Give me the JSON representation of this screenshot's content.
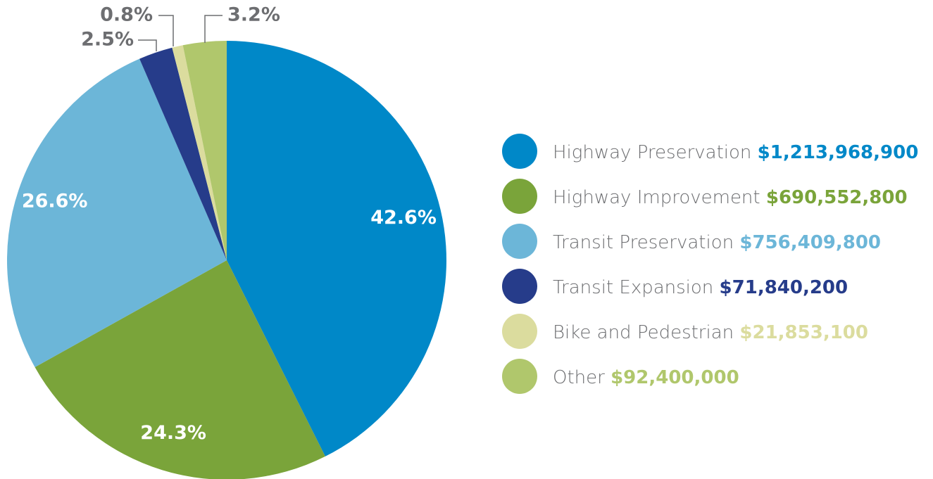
{
  "chart_data": {
    "type": "pie",
    "categories": [
      "Highway Preservation",
      "Highway Improvement",
      "Transit Preservation",
      "Transit Expansion",
      "Bike and Pedestrian",
      "Other"
    ],
    "values": [
      42.6,
      24.3,
      26.6,
      2.5,
      0.8,
      3.2
    ],
    "value_labels": [
      "42.6%",
      "24.3%",
      "26.6%",
      "2.5%",
      "0.8%",
      "3.2%"
    ],
    "amount_labels": [
      "$1,213,968,900",
      "$690,552,800",
      "$756,409,800",
      "$71,840,200",
      "$21,853,100",
      "$92,400,000"
    ],
    "colors": [
      "#0088c8",
      "#7aa43a",
      "#6cb6d8",
      "#263c8a",
      "#dbdc9e",
      "#b0c76c"
    ],
    "legend": "right"
  }
}
